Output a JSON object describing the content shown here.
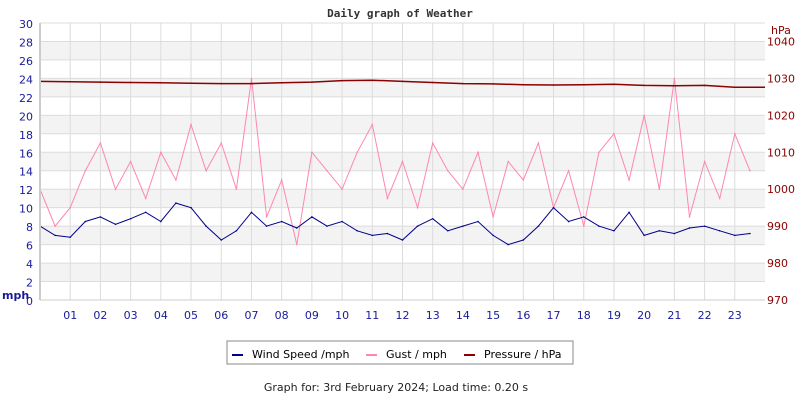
{
  "chart_data": {
    "type": "line",
    "title": "Daily graph of Weather",
    "ylabel": "mph",
    "y2label": "hPa",
    "ylim": [
      0,
      30
    ],
    "y2lim": [
      970,
      1045
    ],
    "xlim": [
      0,
      24
    ],
    "yticks": [
      0,
      2,
      4,
      6,
      8,
      10,
      12,
      14,
      16,
      18,
      20,
      22,
      24,
      26,
      28,
      30
    ],
    "y2ticks": [
      970,
      980,
      990,
      1000,
      1010,
      1020,
      1030,
      1040
    ],
    "xticks": [
      "01",
      "02",
      "03",
      "04",
      "05",
      "06",
      "07",
      "08",
      "09",
      "10",
      "11",
      "12",
      "13",
      "14",
      "15",
      "16",
      "17",
      "18",
      "19",
      "20",
      "21",
      "22",
      "23"
    ],
    "grid": true,
    "legend_placement": "bottom",
    "colors": {
      "wind": "#00008b",
      "gust": "#ff88aa",
      "pressure": "#8b0000",
      "left_axis": "#1a1a99",
      "right_axis": "#8b0000"
    },
    "series": [
      {
        "name": "Wind Speed /mph",
        "axis": "left",
        "x_step_hours": 0.5,
        "values": [
          8,
          7,
          6.8,
          8.5,
          9,
          8.2,
          8.8,
          9.5,
          8.5,
          10.5,
          10,
          8,
          6.5,
          7.5,
          9.5,
          8,
          8.5,
          7.8,
          9,
          8,
          8.5,
          7.5,
          7,
          7.2,
          6.5,
          8,
          8.8,
          7.5,
          8,
          8.5,
          7,
          6,
          6.5,
          8,
          10,
          8.5,
          9,
          8,
          7.5,
          9.5,
          7,
          7.5,
          7.2,
          7.8,
          8,
          7.5,
          7,
          7.2
        ]
      },
      {
        "name": "Gust / mph",
        "axis": "left",
        "x_step_hours": 0.5,
        "values": [
          12,
          8,
          10,
          14,
          17,
          12,
          15,
          11,
          16,
          13,
          19,
          14,
          17,
          12,
          24,
          9,
          13,
          6,
          16,
          14,
          12,
          16,
          19,
          11,
          15,
          10,
          17,
          14,
          12,
          16,
          9,
          15,
          13,
          17,
          10,
          14,
          8,
          16,
          18,
          13,
          20,
          12,
          24,
          9,
          15,
          11,
          18,
          14
        ]
      },
      {
        "name": "Pressure / hPa",
        "axis": "right",
        "x_step_hours": 1,
        "values": [
          1029.2,
          1029.1,
          1029.0,
          1028.9,
          1028.8,
          1028.7,
          1028.6,
          1028.6,
          1028.8,
          1029.0,
          1029.4,
          1029.5,
          1029.2,
          1028.9,
          1028.6,
          1028.5,
          1028.3,
          1028.2,
          1028.3,
          1028.4,
          1028.1,
          1028.0,
          1028.1,
          1027.6
        ]
      }
    ]
  },
  "footer": "Graph for: 3rd February 2024; Load time: 0.20 s"
}
